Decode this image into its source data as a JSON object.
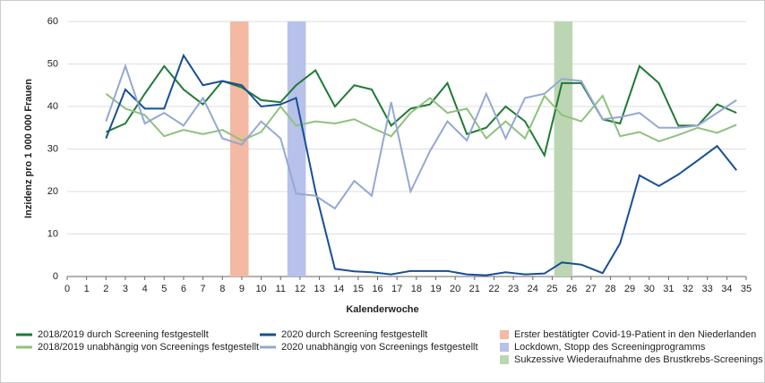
{
  "chart_data": {
    "type": "line",
    "x_label": "Kalenderwoche",
    "y_label": "Inzidenz pro 1 000 000 Frauen",
    "xlim": [
      0,
      35
    ],
    "xticks": [
      0,
      1,
      2,
      3,
      4,
      5,
      6,
      7,
      8,
      9,
      10,
      11,
      12,
      13,
      14,
      15,
      16,
      17,
      18,
      19,
      20,
      21,
      22,
      23,
      24,
      25,
      26,
      27,
      28,
      29,
      30,
      31,
      32,
      33,
      34,
      35
    ],
    "ylim": [
      0,
      60
    ],
    "yticks": [
      0,
      10,
      20,
      30,
      40,
      50,
      60
    ],
    "grid": true,
    "x": [
      2,
      3,
      4,
      5,
      6,
      7,
      8,
      9,
      10,
      11,
      11.8,
      12.8,
      13.8,
      14.8,
      15.7,
      16.7,
      17.7,
      18.7,
      19.6,
      20.6,
      21.6,
      22.6,
      23.6,
      24.6,
      25.5,
      26.5,
      27.6,
      28.5,
      29.5,
      30.5,
      31.5,
      32.5,
      33.5,
      34.5
    ],
    "series": [
      {
        "name": "2018/2019 durch Screening festgestellt",
        "color": "#1f7a35",
        "values": [
          34,
          36,
          43,
          49.5,
          44,
          40.5,
          46,
          44.5,
          41.5,
          41,
          45,
          48.5,
          40,
          45,
          44,
          35.5,
          39.5,
          40.5,
          45.5,
          33.5,
          35,
          40,
          36.5,
          28.5,
          45.5,
          45.5,
          37,
          36,
          49.5,
          45.5,
          35.5,
          35.5,
          40.5,
          38.5
        ]
      },
      {
        "name": "2018/2019 unabhängig von Screenings festgestellt",
        "color": "#8fc17e",
        "values": [
          43,
          39.5,
          38,
          33,
          34.5,
          33.5,
          34.5,
          32,
          34,
          40,
          35.5,
          36.5,
          36,
          37,
          35,
          33,
          38.5,
          42,
          38.5,
          39.5,
          32.5,
          36.5,
          32.5,
          42.5,
          38,
          36.5,
          42.5,
          33,
          34,
          31.8,
          33.3,
          35,
          33.8,
          35.7
        ]
      },
      {
        "name": "2020 durch Screening festgestellt",
        "color": "#174f96",
        "values": [
          32.5,
          44,
          39.5,
          39.5,
          52,
          45,
          46,
          45,
          40,
          40.5,
          42,
          20,
          1.8,
          1.2,
          1,
          0.5,
          1.3,
          1.3,
          1.3,
          0.5,
          0.3,
          1,
          0.5,
          0.7,
          3.3,
          2.8,
          0.8,
          7.8,
          23.8,
          21.3,
          24,
          27.3,
          30.7,
          25
        ]
      },
      {
        "name": "2020 unabhängig von Screenings festgestellt",
        "color": "#95a8d3",
        "values": [
          36.5,
          49.5,
          36,
          38.5,
          35.5,
          42,
          32.5,
          31,
          36.5,
          32.5,
          19.5,
          19,
          16,
          22.5,
          19,
          41,
          20,
          29.5,
          36.5,
          32,
          43,
          32.5,
          42,
          43,
          46.5,
          46,
          37,
          37.5,
          38.5,
          35,
          35,
          35.5,
          38.5,
          41.5
        ]
      }
    ],
    "bands": [
      {
        "label": "Erster bestätigter Covid-19-Patient in den Niederlanden",
        "x0": 8.4,
        "x1": 9.35,
        "color": "#f4b9a2"
      },
      {
        "label": "Lockdown, Stopp des Screeningprogramms",
        "x0": 11.35,
        "x1": 12.3,
        "color": "#b7c1ea"
      },
      {
        "label": "Sukzessive Wiederaufnahme des Brustkrebs-Screenings",
        "x0": 25.1,
        "x1": 26.05,
        "color": "#bcd6b4"
      }
    ]
  }
}
